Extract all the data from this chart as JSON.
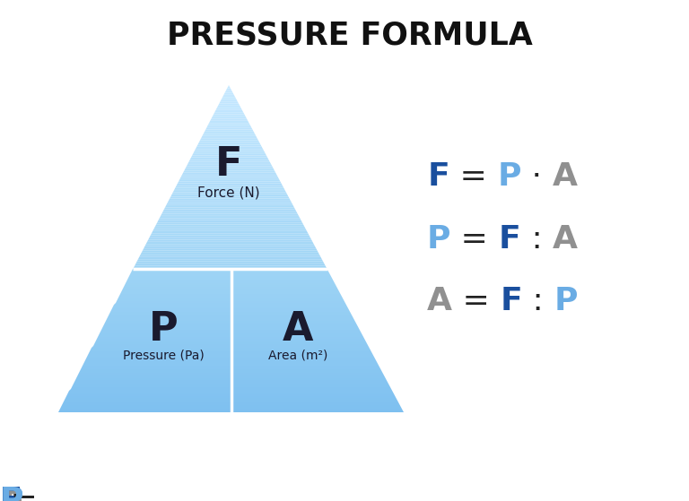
{
  "title": "PRESSURE FORMULA",
  "title_fontsize": 25,
  "title_fontweight": "bold",
  "bg_color": "#ffffff",
  "color_apex": "#c5e8ff",
  "color_mid": "#9ed4f5",
  "color_base": "#7ec0f0",
  "divider_color": "#ffffff",
  "text_dark": "#1a1a2e",
  "dark_blue": "#1a4f9e",
  "light_blue": "#6aace4",
  "gray": "#909090",
  "eq_dark_blue": "#1a4f9e",
  "eq_light_blue": "#6aace4",
  "eq_gray": "#909090",
  "eq_black": "#222222",
  "formula_lines": [
    {
      "parts": [
        {
          "text": "F",
          "color": "#1a4f9e",
          "bold": true
        },
        {
          "text": " = ",
          "color": "#222222",
          "bold": false
        },
        {
          "text": "P",
          "color": "#6aace4",
          "bold": true
        },
        {
          "text": " · ",
          "color": "#222222",
          "bold": false
        },
        {
          "text": "A",
          "color": "#909090",
          "bold": true
        }
      ]
    },
    {
      "parts": [
        {
          "text": "P",
          "color": "#6aace4",
          "bold": true
        },
        {
          "text": " = ",
          "color": "#222222",
          "bold": false
        },
        {
          "text": "F",
          "color": "#1a4f9e",
          "bold": true
        },
        {
          "text": " : ",
          "color": "#222222",
          "bold": false
        },
        {
          "text": "A",
          "color": "#909090",
          "bold": true
        }
      ]
    },
    {
      "parts": [
        {
          "text": "A",
          "color": "#909090",
          "bold": true
        },
        {
          "text": " = ",
          "color": "#222222",
          "bold": false
        },
        {
          "text": "F",
          "color": "#1a4f9e",
          "bold": true
        },
        {
          "text": " : ",
          "color": "#222222",
          "bold": false
        },
        {
          "text": "P",
          "color": "#6aace4",
          "bold": true
        }
      ]
    }
  ],
  "label_F": "F",
  "label_F_sub": "Force (N)",
  "label_P": "P",
  "label_P_sub": "Pressure (Pa)",
  "label_A": "A",
  "label_A_sub": "Area (m²)"
}
